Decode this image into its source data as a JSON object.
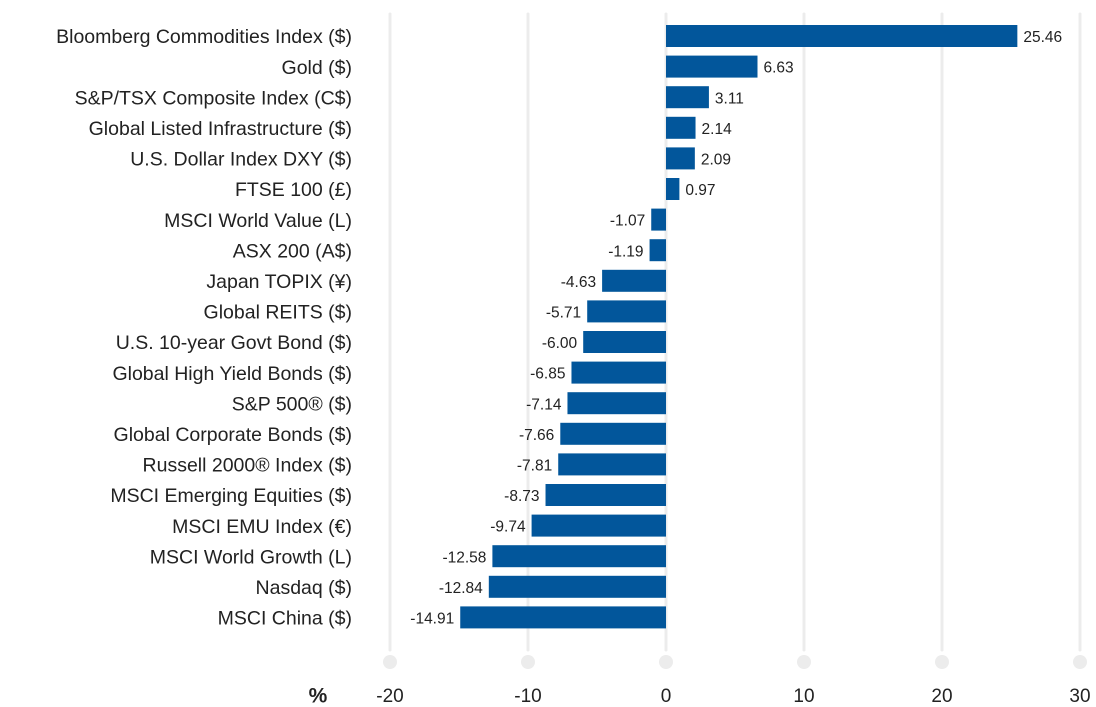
{
  "chart_data": {
    "type": "barh",
    "categories": [
      "Bloomberg Commodities Index ($)",
      "Gold ($)",
      "S&P/TSX Composite Index (C$)",
      "Global Listed Infrastructure ($)",
      "U.S. Dollar Index DXY ($)",
      "FTSE 100 (£)",
      "MSCI World Value (L)",
      "ASX 200 (A$)",
      "Japan TOPIX (¥)",
      "Global REITS ($)",
      "U.S. 10-year Govt Bond ($)",
      "Global High Yield Bonds ($)",
      "S&P 500® ($)",
      "Global Corporate Bonds ($)",
      "Russell 2000® Index ($)",
      "MSCI Emerging Equities ($)",
      "MSCI EMU Index (€)",
      "MSCI World Growth (L)",
      "Nasdaq ($)",
      "MSCI China ($)"
    ],
    "values": [
      25.46,
      6.63,
      3.11,
      2.14,
      2.09,
      0.97,
      -1.07,
      -1.19,
      -4.63,
      -5.71,
      -6.0,
      -6.85,
      -7.14,
      -7.66,
      -7.81,
      -8.73,
      -9.74,
      -12.58,
      -12.84,
      -14.91
    ],
    "value_labels": [
      "25.46",
      "6.63",
      "3.11",
      "2.14",
      "2.09",
      "0.97",
      "-1.07",
      "-1.19",
      "-4.63",
      "-5.71",
      "-6.00",
      "-6.85",
      "-7.14",
      "-7.66",
      "-7.81",
      "-8.73",
      "-9.74",
      "-12.58",
      "-12.84",
      "-14.91"
    ],
    "color": "#02569b",
    "xlabel": "%",
    "xlim": [
      -20,
      30
    ],
    "xticks": [
      -20,
      -10,
      0,
      10,
      20,
      30
    ],
    "grid": true
  }
}
